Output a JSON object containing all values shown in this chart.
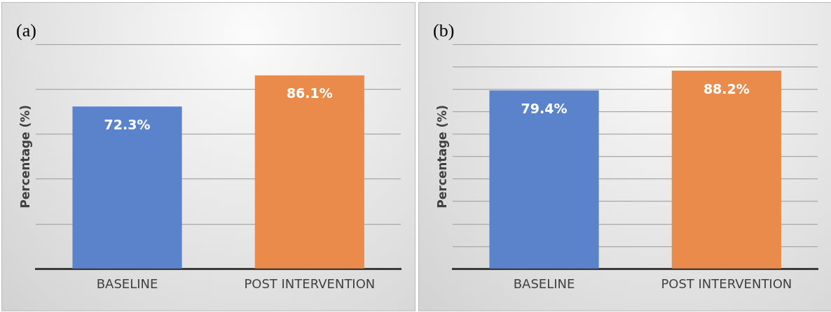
{
  "chart_data": [
    {
      "type": "bar",
      "title": "(a)",
      "ylabel": "Percentage (%)",
      "categories": [
        "BASELINE",
        "POST INTERVENTION"
      ],
      "values": [
        72.3,
        86.1
      ],
      "colors": [
        "#5b83cc",
        "#eb8b4b"
      ],
      "value_labels": [
        "72.3%",
        "86.1%"
      ],
      "ylim": [
        0,
        100
      ],
      "yticks": [
        {
          "value": 0,
          "label": null
        },
        {
          "value": 20,
          "label": null
        },
        {
          "value": 40,
          "label": null
        },
        {
          "value": 60,
          "label": null
        },
        {
          "value": 80,
          "label": null
        },
        {
          "value": 100,
          "label": null
        }
      ],
      "tick_labels": "x",
      "grid": "y",
      "legend": false
    },
    {
      "type": "bar",
      "title": "(b)",
      "ylabel": "Percentage (%)",
      "categories": [
        "BASELINE",
        "POST INTERVENTION"
      ],
      "values": [
        79.4,
        88.2
      ],
      "colors": [
        "#5b83cc",
        "#eb8b4b"
      ],
      "value_labels": [
        "79.4%",
        "88.2%"
      ],
      "ylim": [
        0,
        100
      ],
      "yticks": [
        {
          "value": 0,
          "label": null
        },
        {
          "value": 10,
          "label": null
        },
        {
          "value": 20,
          "label": null
        },
        {
          "value": 30,
          "label": null
        },
        {
          "value": 40,
          "label": null
        },
        {
          "value": 50,
          "label": null
        },
        {
          "value": 60,
          "label": null
        },
        {
          "value": 70,
          "label": null
        },
        {
          "value": 80,
          "label": null
        },
        {
          "value": 90,
          "label": null
        },
        {
          "value": 100,
          "label": null
        }
      ],
      "tick_labels": "x",
      "grid": "y",
      "legend": false
    }
  ]
}
